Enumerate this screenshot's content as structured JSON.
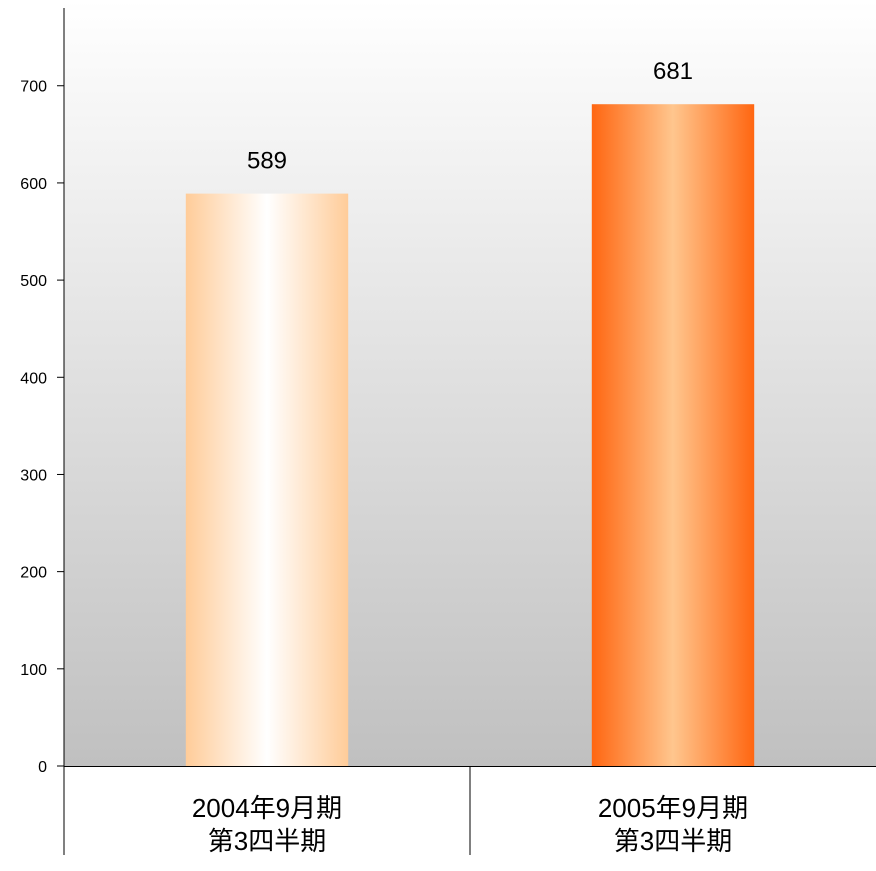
{
  "chart_data": {
    "type": "bar",
    "categories": [
      [
        "2004年9月期",
        "第3四半期"
      ],
      [
        "2005年9月期",
        "第3四半期"
      ]
    ],
    "values": [
      589,
      681
    ],
    "data_labels": [
      "589",
      "681"
    ],
    "ylim": [
      0,
      780
    ],
    "yticks": [
      0,
      100,
      200,
      300,
      400,
      500,
      600,
      700
    ],
    "ytick_labels": [
      "0",
      "100",
      "200",
      "300",
      "400",
      "500",
      "600",
      "700"
    ],
    "title": "",
    "xlabel": "",
    "ylabel": "",
    "grid": false,
    "plot_background": "gradient #ffffff to #c0c0c0",
    "bar_colors": [
      {
        "edge": "#ffcc99",
        "center": "#ffffff"
      },
      {
        "edge": "#ff6611",
        "center": "#ffc68e"
      }
    ]
  }
}
